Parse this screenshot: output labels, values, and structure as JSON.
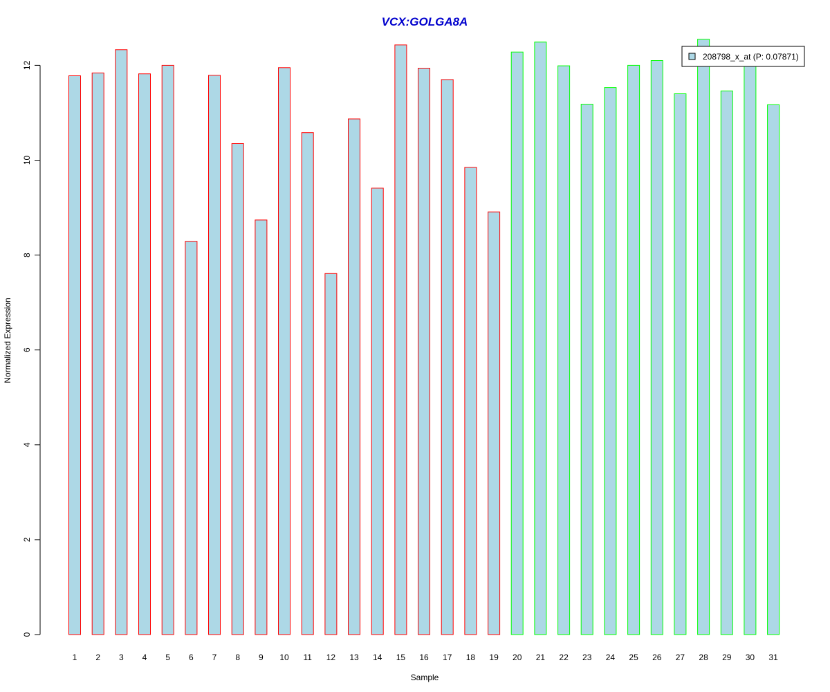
{
  "chart_data": {
    "type": "bar",
    "title": "VCX:GOLGA8A",
    "xlabel": "Sample",
    "ylabel": "Normalized Expression",
    "categories": [
      "1",
      "2",
      "3",
      "4",
      "5",
      "6",
      "7",
      "8",
      "9",
      "10",
      "11",
      "12",
      "13",
      "14",
      "15",
      "16",
      "17",
      "18",
      "19",
      "20",
      "21",
      "22",
      "23",
      "24",
      "25",
      "26",
      "27",
      "28",
      "29",
      "30",
      "31"
    ],
    "values": [
      11.78,
      11.84,
      12.33,
      11.82,
      12.0,
      8.29,
      11.79,
      10.35,
      8.74,
      11.95,
      10.58,
      7.61,
      10.87,
      9.41,
      12.43,
      11.94,
      11.7,
      9.85,
      8.91,
      12.28,
      12.49,
      11.99,
      11.18,
      11.53,
      12.0,
      12.1,
      11.4,
      12.55,
      11.46,
      12.05,
      11.17
    ],
    "groups": [
      "red",
      "red",
      "red",
      "red",
      "red",
      "red",
      "red",
      "red",
      "red",
      "red",
      "red",
      "red",
      "red",
      "red",
      "red",
      "red",
      "red",
      "red",
      "red",
      "green",
      "green",
      "green",
      "green",
      "green",
      "green",
      "green",
      "green",
      "green",
      "green",
      "green",
      "green"
    ],
    "ylim": [
      0,
      12.55
    ],
    "yticks": [
      0,
      2,
      4,
      6,
      8,
      10,
      12
    ],
    "grid": false,
    "legend": {
      "placement": "top-right",
      "entries": [
        {
          "label": "208798_x_at (P: 0.07871)",
          "fill": "#add8e6"
        }
      ]
    },
    "colors": {
      "bar_fill": "#add8e6",
      "red_border": "#ff0000",
      "green_border": "#00ff00",
      "title": "#0000cd"
    }
  }
}
